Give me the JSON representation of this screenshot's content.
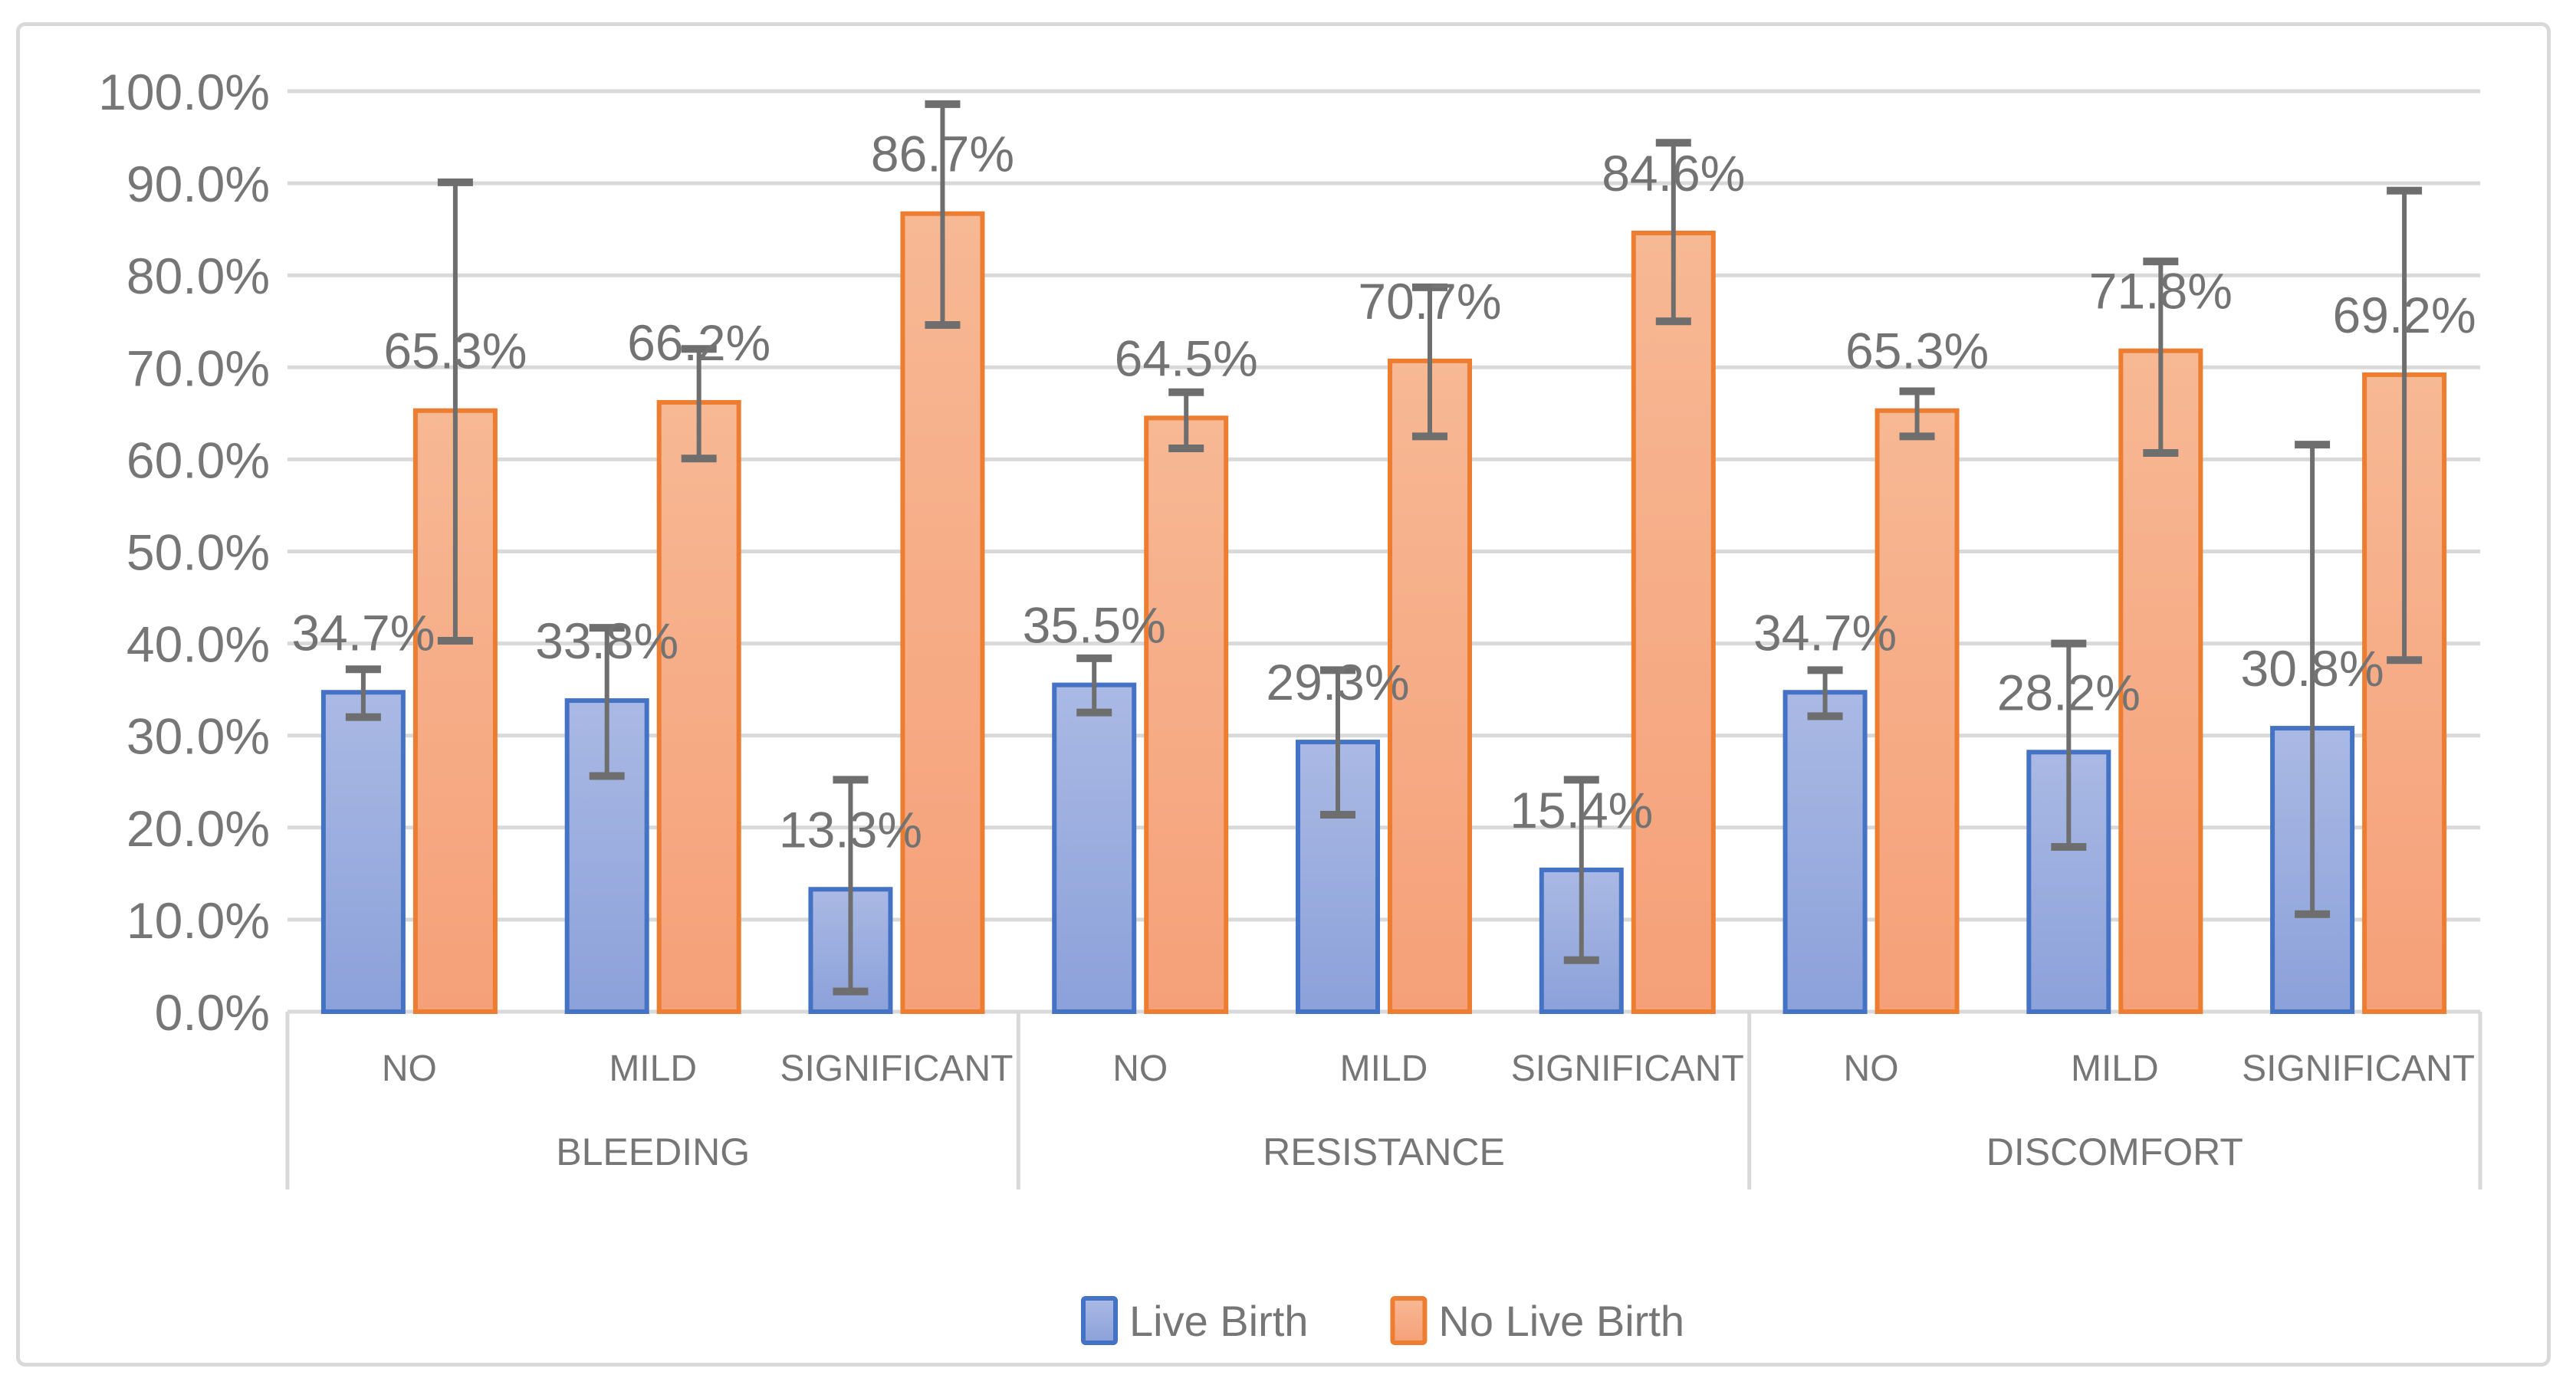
{
  "chart_data": {
    "type": "bar",
    "title": "",
    "orientation": "vertical",
    "grid": true,
    "y_axis": {
      "min": 0,
      "max": 100,
      "step": 10,
      "tick_labels": [
        "0.0%",
        "10.0%",
        "20.0%",
        "30.0%",
        "40.0%",
        "50.0%",
        "60.0%",
        "70.0%",
        "80.0%",
        "90.0%",
        "100.0%"
      ]
    },
    "groups": [
      {
        "label": "BLEEDING",
        "subcategories": [
          "NO",
          "MILD",
          "SIGNIFICANT"
        ]
      },
      {
        "label": "RESISTANCE",
        "subcategories": [
          "NO",
          "MILD",
          "SIGNIFICANT"
        ]
      },
      {
        "label": "DISCOMFORT",
        "subcategories": [
          "NO",
          "MILD",
          "SIGNIFICANT"
        ]
      }
    ],
    "legend": {
      "position": "bottom",
      "items": [
        "Live Birth",
        "No Live Birth"
      ]
    },
    "colors": {
      "live_birth_border": "#4472C4",
      "live_birth_fill_top": "#AAB9E4",
      "live_birth_fill_bottom": "#8CA1DA",
      "no_live_birth_border": "#ED7D31",
      "no_live_birth_fill_top": "#F7B894",
      "no_live_birth_fill_bottom": "#F5A078",
      "gridline": "#D9D9D9",
      "axis_text": "#767676",
      "data_label_text": "#737373",
      "error_bar": "#6E6E6E",
      "frame_border": "#D9D9D9",
      "background": "#FFFFFF"
    },
    "series": [
      {
        "name": "Live Birth",
        "points": [
          {
            "group": "BLEEDING",
            "category": "NO",
            "value": 34.7,
            "label": "34.7%",
            "error_low": 32.0,
            "error_high": 37.2
          },
          {
            "group": "BLEEDING",
            "category": "MILD",
            "value": 33.8,
            "label": "33.8%",
            "error_low": 25.6,
            "error_high": 41.7
          },
          {
            "group": "BLEEDING",
            "category": "SIGNIFICANT",
            "value": 13.3,
            "label": "13.3%",
            "error_low": 2.2,
            "error_high": 25.2
          },
          {
            "group": "RESISTANCE",
            "category": "NO",
            "value": 35.5,
            "label": "35.5%",
            "error_low": 32.5,
            "error_high": 38.4
          },
          {
            "group": "RESISTANCE",
            "category": "MILD",
            "value": 29.3,
            "label": "29.3%",
            "error_low": 21.4,
            "error_high": 37.1
          },
          {
            "group": "RESISTANCE",
            "category": "SIGNIFICANT",
            "value": 15.4,
            "label": "15.4%",
            "error_low": 5.6,
            "error_high": 25.2
          },
          {
            "group": "DISCOMFORT",
            "category": "NO",
            "value": 34.7,
            "label": "34.7%",
            "error_low": 32.1,
            "error_high": 37.1
          },
          {
            "group": "DISCOMFORT",
            "category": "MILD",
            "value": 28.2,
            "label": "28.2%",
            "error_low": 17.9,
            "error_high": 40.0
          },
          {
            "group": "DISCOMFORT",
            "category": "SIGNIFICANT",
            "value": 30.8,
            "label": "30.8%",
            "error_low": 10.6,
            "error_high": 61.6
          }
        ]
      },
      {
        "name": "No Live Birth",
        "points": [
          {
            "group": "BLEEDING",
            "category": "NO",
            "value": 65.3,
            "label": "65.3%",
            "error_low": 40.3,
            "error_high": 90.1
          },
          {
            "group": "BLEEDING",
            "category": "MILD",
            "value": 66.2,
            "label": "66.2%",
            "error_low": 60.1,
            "error_high": 72.0
          },
          {
            "group": "BLEEDING",
            "category": "SIGNIFICANT",
            "value": 86.7,
            "label": "86.7%",
            "error_low": 74.6,
            "error_high": 98.6
          },
          {
            "group": "RESISTANCE",
            "category": "NO",
            "value": 64.5,
            "label": "64.5%",
            "error_low": 61.2,
            "error_high": 67.3
          },
          {
            "group": "RESISTANCE",
            "category": "MILD",
            "value": 70.7,
            "label": "70.7%",
            "error_low": 62.5,
            "error_high": 78.7
          },
          {
            "group": "RESISTANCE",
            "category": "SIGNIFICANT",
            "value": 84.6,
            "label": "84.6%",
            "error_low": 75.0,
            "error_high": 94.4
          },
          {
            "group": "DISCOMFORT",
            "category": "NO",
            "value": 65.3,
            "label": "65.3%",
            "error_low": 62.5,
            "error_high": 67.4
          },
          {
            "group": "DISCOMFORT",
            "category": "MILD",
            "value": 71.8,
            "label": "71.8%",
            "error_low": 60.7,
            "error_high": 81.5
          },
          {
            "group": "DISCOMFORT",
            "category": "SIGNIFICANT",
            "value": 69.2,
            "label": "69.2%",
            "error_low": 38.2,
            "error_high": 89.2
          }
        ]
      }
    ]
  }
}
